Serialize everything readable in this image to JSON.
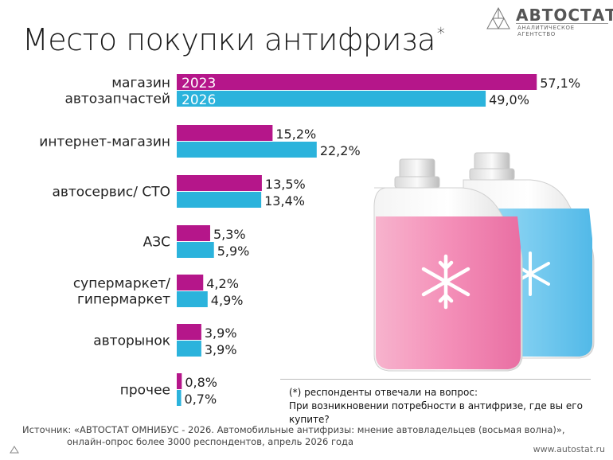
{
  "header": {
    "title": "Место покупки антифриза",
    "title_mark": "*",
    "logo_name": "АВТОСТАТ",
    "logo_tagline": "АНАЛИТИЧЕСКОЕ АГЕНТСТВО"
  },
  "chart_data": {
    "type": "bar",
    "orientation": "horizontal",
    "title": "Место покупки антифриза",
    "categories": [
      [
        "магазин",
        "автозапчастей"
      ],
      [
        "интернет-магазин"
      ],
      [
        "автосервис/ СТО"
      ],
      [
        "АЗС"
      ],
      [
        "супермаркет/",
        "гипермаркет"
      ],
      [
        "авторынок"
      ],
      [
        "прочее"
      ]
    ],
    "series": [
      {
        "name": "2023",
        "color": "#b5168a",
        "values": [
          57.1,
          15.2,
          13.5,
          5.3,
          4.2,
          3.9,
          0.8
        ],
        "labels": [
          "57,1%",
          "15,2%",
          "13,5%",
          "5,3%",
          "4,2%",
          "3,9%",
          "0,8%"
        ]
      },
      {
        "name": "2026",
        "color": "#2bb3dc",
        "values": [
          49.0,
          22.2,
          13.4,
          5.9,
          4.9,
          3.9,
          0.7
        ],
        "labels": [
          "49,0%",
          "22,2%",
          "13,4%",
          "5,9%",
          "4,9%",
          "3,9%",
          "0,7%"
        ]
      }
    ],
    "value_unit": "%",
    "legend_placement": "inside-first-bars",
    "grid": false
  },
  "footnote": {
    "line1": "(*) респонденты отвечали на вопрос:",
    "line2": "При возникновении потребности в антифризе, где вы его купите?"
  },
  "source": {
    "line1": "Источник: «АВТОСТАТ ОМНИБУС - 2026. Автомобильные антифризы: мнение автовладельцев (восьмая волна)»,",
    "line2": "онлайн-опрос более 3000 респондентов, апрель 2026 года"
  },
  "footer": {
    "url": "www.autostat.ru"
  }
}
